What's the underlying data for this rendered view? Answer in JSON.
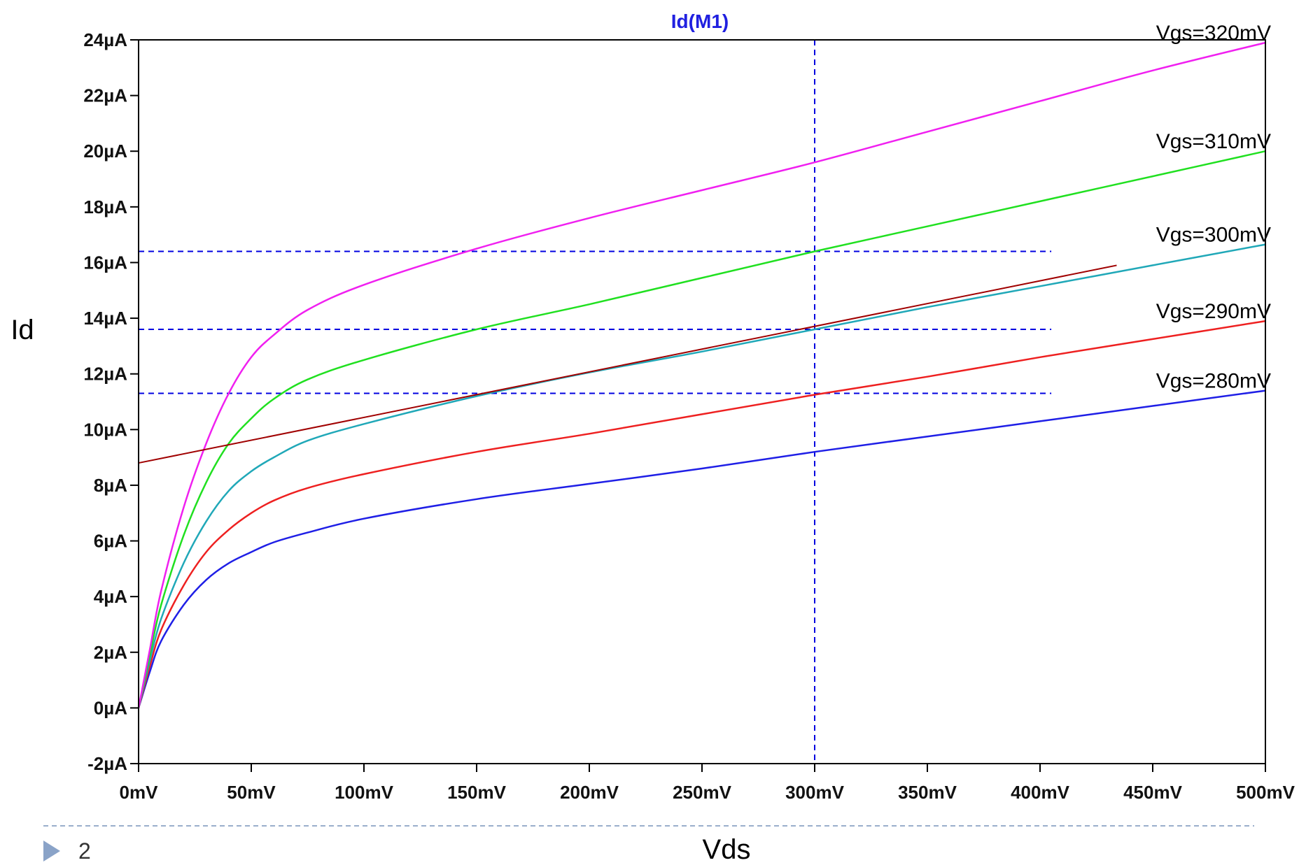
{
  "page_number": "2",
  "colors": {
    "title": "#2020e0",
    "axes": "#000000",
    "cursor": "#0000e0",
    "tangent": "#a00000",
    "footer_rule": "#9aaecb",
    "footer_arrow": "#8aa3c8"
  },
  "chart_data": {
    "type": "line",
    "title": "Id(M1)",
    "xlabel": "Vds",
    "ylabel": "Id",
    "xlim": [
      0,
      500
    ],
    "ylim": [
      -2,
      24
    ],
    "x_ticks": [
      "0mV",
      "50mV",
      "100mV",
      "150mV",
      "200mV",
      "250mV",
      "300mV",
      "350mV",
      "400mV",
      "450mV",
      "500mV"
    ],
    "y_ticks": [
      "-2µA",
      "0µA",
      "2µA",
      "4µA",
      "6µA",
      "8µA",
      "10µA",
      "12µA",
      "14µA",
      "16µA",
      "18µA",
      "20µA",
      "22µA",
      "24µA"
    ],
    "grid": false,
    "x": [
      0,
      5,
      10,
      20,
      30,
      40,
      50,
      60,
      75,
      100,
      150,
      200,
      250,
      300,
      350,
      400,
      450,
      500
    ],
    "series": [
      {
        "name": "Vgs=280mV",
        "color": "#1f1fe6",
        "values": [
          0.0,
          1.3,
          2.4,
          3.7,
          4.6,
          5.2,
          5.6,
          5.95,
          6.3,
          6.8,
          7.5,
          8.05,
          8.6,
          9.2,
          9.75,
          10.3,
          10.85,
          11.4
        ]
      },
      {
        "name": "Vgs=290mV",
        "color": "#ee2020",
        "values": [
          0.0,
          1.5,
          2.8,
          4.4,
          5.6,
          6.4,
          7.0,
          7.45,
          7.9,
          8.4,
          9.2,
          9.85,
          10.55,
          11.25,
          11.9,
          12.6,
          13.25,
          13.9
        ]
      },
      {
        "name": "Vgs=300mV",
        "color": "#20a8b8",
        "values": [
          0.0,
          1.7,
          3.2,
          5.2,
          6.7,
          7.8,
          8.5,
          9.0,
          9.6,
          10.2,
          11.2,
          12.05,
          12.8,
          13.6,
          14.4,
          15.15,
          15.9,
          16.65
        ]
      },
      {
        "name": "Vgs=310mV",
        "color": "#20e020",
        "values": [
          0.0,
          1.9,
          3.7,
          6.2,
          8.1,
          9.5,
          10.4,
          11.1,
          11.8,
          12.5,
          13.6,
          14.5,
          15.45,
          16.4,
          17.3,
          18.2,
          19.1,
          20.0
        ]
      },
      {
        "name": "Vgs=320mV",
        "color": "#f020f0",
        "values": [
          0.0,
          2.1,
          4.2,
          7.2,
          9.5,
          11.3,
          12.6,
          13.4,
          14.3,
          15.2,
          16.5,
          17.6,
          18.6,
          19.6,
          20.7,
          21.8,
          22.9,
          23.9
        ]
      }
    ],
    "tangent_line": {
      "x": [
        0,
        434
      ],
      "y": [
        8.8,
        15.9
      ]
    },
    "cursor_x": 300,
    "cursor_y": [
      16.4,
      13.6,
      11.3
    ],
    "cursor_y_xrange": [
      0,
      405
    ]
  }
}
